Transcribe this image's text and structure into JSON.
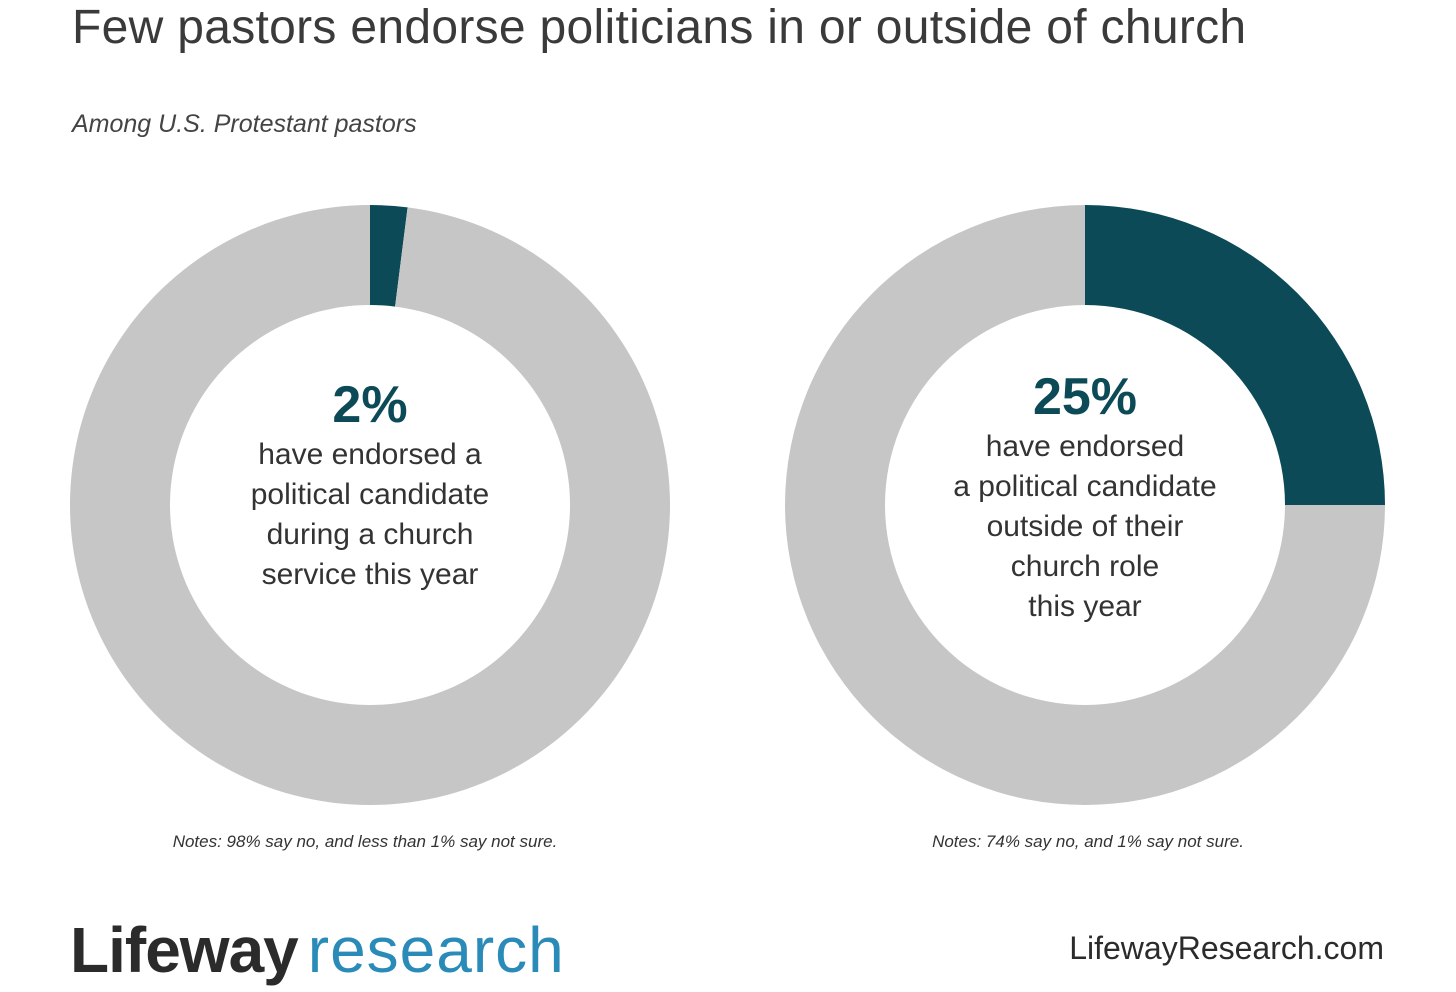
{
  "title": "Few pastors endorse politicians in or outside of church",
  "subtitle": "Among U.S. Protestant pastors",
  "colors": {
    "highlight": "#0b4a56",
    "remainder": "#c6c6c6",
    "research_blue": "#2a8bb8"
  },
  "chart_data": [
    {
      "type": "pie",
      "variant": "donut",
      "slices": [
        {
          "label": "have endorsed a political candidate during a church service this year",
          "value": 2,
          "color": "#0b4a56"
        },
        {
          "label": "",
          "value": 98,
          "color": "#c6c6c6"
        }
      ],
      "center_value": "2%",
      "center_text": [
        "have endorsed a",
        "political candidate",
        "during a church",
        "service this year"
      ],
      "note": "Notes: 98% say no, and less than 1% say not sure."
    },
    {
      "type": "pie",
      "variant": "donut",
      "slices": [
        {
          "label": "have endorsed a political candidate outside of their church role this year",
          "value": 25,
          "color": "#0b4a56"
        },
        {
          "label": "",
          "value": 75,
          "color": "#c6c6c6"
        }
      ],
      "center_value": "25%",
      "center_text": [
        "have endorsed",
        "a political candidate",
        "outside of their",
        "church role",
        "this year"
      ],
      "note": "Notes: 74% say no, and 1% say not sure."
    }
  ],
  "footer": {
    "logo_word_1": "Lifeway",
    "logo_word_2": "research",
    "website": "LifewayResearch.com"
  }
}
